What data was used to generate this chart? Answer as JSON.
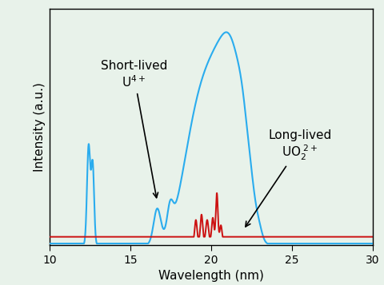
{
  "xlim": [
    10,
    30
  ],
  "ylim": [
    0,
    1.0
  ],
  "xlabel": "Wavelength (nm)",
  "ylabel": "Intensity (a.u.)",
  "background_color": "#e8f2ea",
  "blue_color": "#2aacee",
  "red_color": "#cc1111",
  "axis_fontsize": 11,
  "tick_fontsize": 10,
  "annot_fontsize": 11
}
